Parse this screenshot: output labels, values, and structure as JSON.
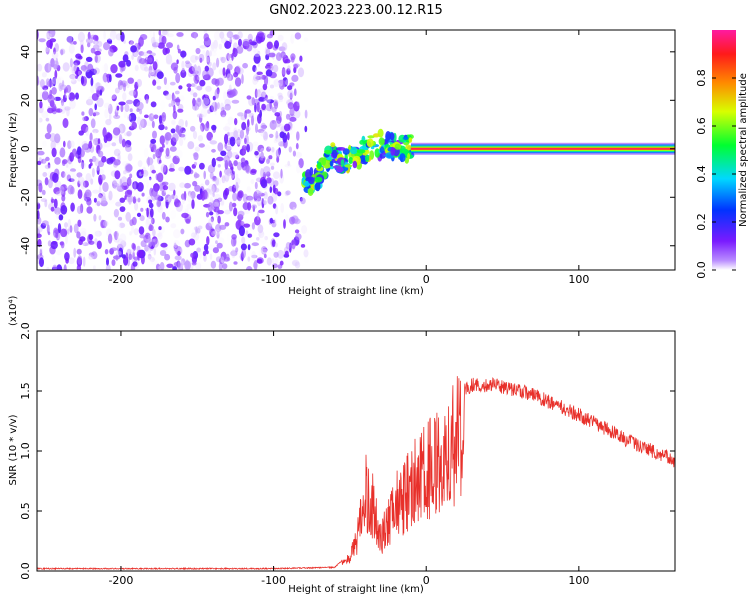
{
  "figure": {
    "title": "GN02.2023.223.00.12.R15"
  },
  "chart_data": [
    {
      "type": "heatmap",
      "xlabel": "Height of straight line (km)",
      "ylabel": "Frequency (Hz)",
      "xlim": [
        -255,
        163
      ],
      "ylim": [
        -50,
        49
      ],
      "xticks": [
        -200,
        -100,
        0,
        100
      ],
      "xtick_labels": [
        "-200",
        "-100",
        "0",
        "100"
      ],
      "yticks": [
        -40,
        -20,
        0,
        20,
        40
      ],
      "ytick_labels": [
        "-40",
        "-20",
        "0",
        "20",
        "40"
      ],
      "grid": false,
      "colorbar": {
        "label": "Normalized spectral amplitude",
        "range": [
          0,
          1
        ],
        "ticks": [
          0.0,
          0.2,
          0.4,
          0.6,
          0.8
        ],
        "tick_labels": [
          "0.0",
          "0.2",
          "0.4",
          "0.6",
          "0.8"
        ],
        "colormap": "rainbow (purple-blue-cyan-green-yellow-orange-red-magenta)"
      },
      "regions": [
        {
          "description": "broadband noise",
          "x_range": [
            -255,
            -78
          ],
          "freq_range": [
            -50,
            48
          ],
          "amplitude": [
            0.0,
            0.15
          ]
        },
        {
          "description": "emerging signal",
          "x_range": [
            -80,
            -10
          ],
          "freq_center": [
            -15,
            5
          ],
          "amplitude": [
            0.1,
            0.7
          ]
        },
        {
          "description": "steady tone",
          "x_range": [
            -10,
            163
          ],
          "freq_center": 0,
          "amplitude": [
            0.7,
            0.95
          ]
        }
      ],
      "ridge": [
        {
          "x": -80,
          "freq": -15
        },
        {
          "x": -70,
          "freq": -10
        },
        {
          "x": -62,
          "freq": -3
        },
        {
          "x": -55,
          "freq": -5
        },
        {
          "x": -45,
          "freq": -3
        },
        {
          "x": -35,
          "freq": 2
        },
        {
          "x": -25,
          "freq": 1
        },
        {
          "x": -10,
          "freq": 0
        },
        {
          "x": 0,
          "freq": 0
        },
        {
          "x": 163,
          "freq": 0
        }
      ],
      "colors": {
        "noise": "#7a1bff",
        "signal_core": "#ff2a2a"
      }
    },
    {
      "type": "line",
      "xlabel": "Height of straight line (km)",
      "ylabel": "SNR (10 * v/v)",
      "y_multiplier": "(x10⁴)",
      "xlim": [
        -255,
        163
      ],
      "ylim": [
        0,
        2.0
      ],
      "xticks": [
        -200,
        -100,
        0,
        100
      ],
      "xtick_labels": [
        "-200",
        "-100",
        "0",
        "100"
      ],
      "yticks": [
        0.0,
        0.5,
        1.0,
        1.5,
        2.0
      ],
      "ytick_labels": [
        "0.0",
        "0.5",
        "1.0",
        "1.5",
        "2.0"
      ],
      "grid": false,
      "series": [
        {
          "color": "#e8302a",
          "envelope": [
            {
              "x": -255,
              "y": 0.02
            },
            {
              "x": -100,
              "y": 0.02
            },
            {
              "x": -60,
              "y": 0.03
            },
            {
              "x": -50,
              "y": 0.15
            },
            {
              "x": -44,
              "y": 0.45
            },
            {
              "x": -40,
              "y": 0.9
            },
            {
              "x": -35,
              "y": 0.75
            },
            {
              "x": -30,
              "y": 0.35
            },
            {
              "x": -25,
              "y": 0.55
            },
            {
              "x": -20,
              "y": 0.75
            },
            {
              "x": -10,
              "y": 0.95
            },
            {
              "x": 0,
              "y": 1.15
            },
            {
              "x": 10,
              "y": 1.35
            },
            {
              "x": 20,
              "y": 1.48
            },
            {
              "x": 30,
              "y": 1.55
            },
            {
              "x": 45,
              "y": 1.55
            },
            {
              "x": 70,
              "y": 1.47
            },
            {
              "x": 100,
              "y": 1.3
            },
            {
              "x": 130,
              "y": 1.1
            },
            {
              "x": 163,
              "y": 0.92
            }
          ]
        }
      ]
    }
  ]
}
